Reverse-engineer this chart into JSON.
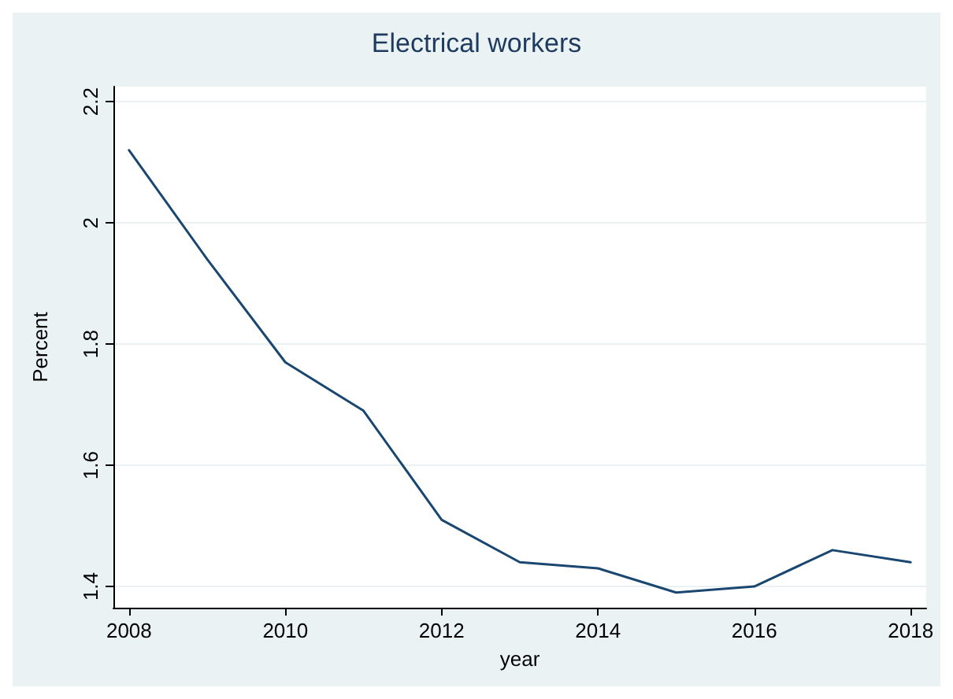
{
  "chart_data": {
    "type": "line",
    "title": "Electrical workers",
    "xlabel": "year",
    "ylabel": "Percent",
    "x": [
      2008,
      2009,
      2010,
      2011,
      2012,
      2013,
      2014,
      2015,
      2016,
      2017,
      2018
    ],
    "series": [
      {
        "color": "#1a476f",
        "values": [
          2.12,
          1.94,
          1.77,
          1.69,
          1.51,
          1.44,
          1.43,
          1.39,
          1.4,
          1.46,
          1.44
        ]
      }
    ],
    "xlim": [
      2007.8,
      2018.2
    ],
    "xticks": [
      2008,
      2010,
      2012,
      2014,
      2016,
      2018
    ],
    "ylim": [
      1.365,
      2.225
    ],
    "yticks": [
      1.4,
      1.6,
      1.8,
      2,
      2.2
    ],
    "grid": "y",
    "marker": "none",
    "line_style": "solid"
  }
}
